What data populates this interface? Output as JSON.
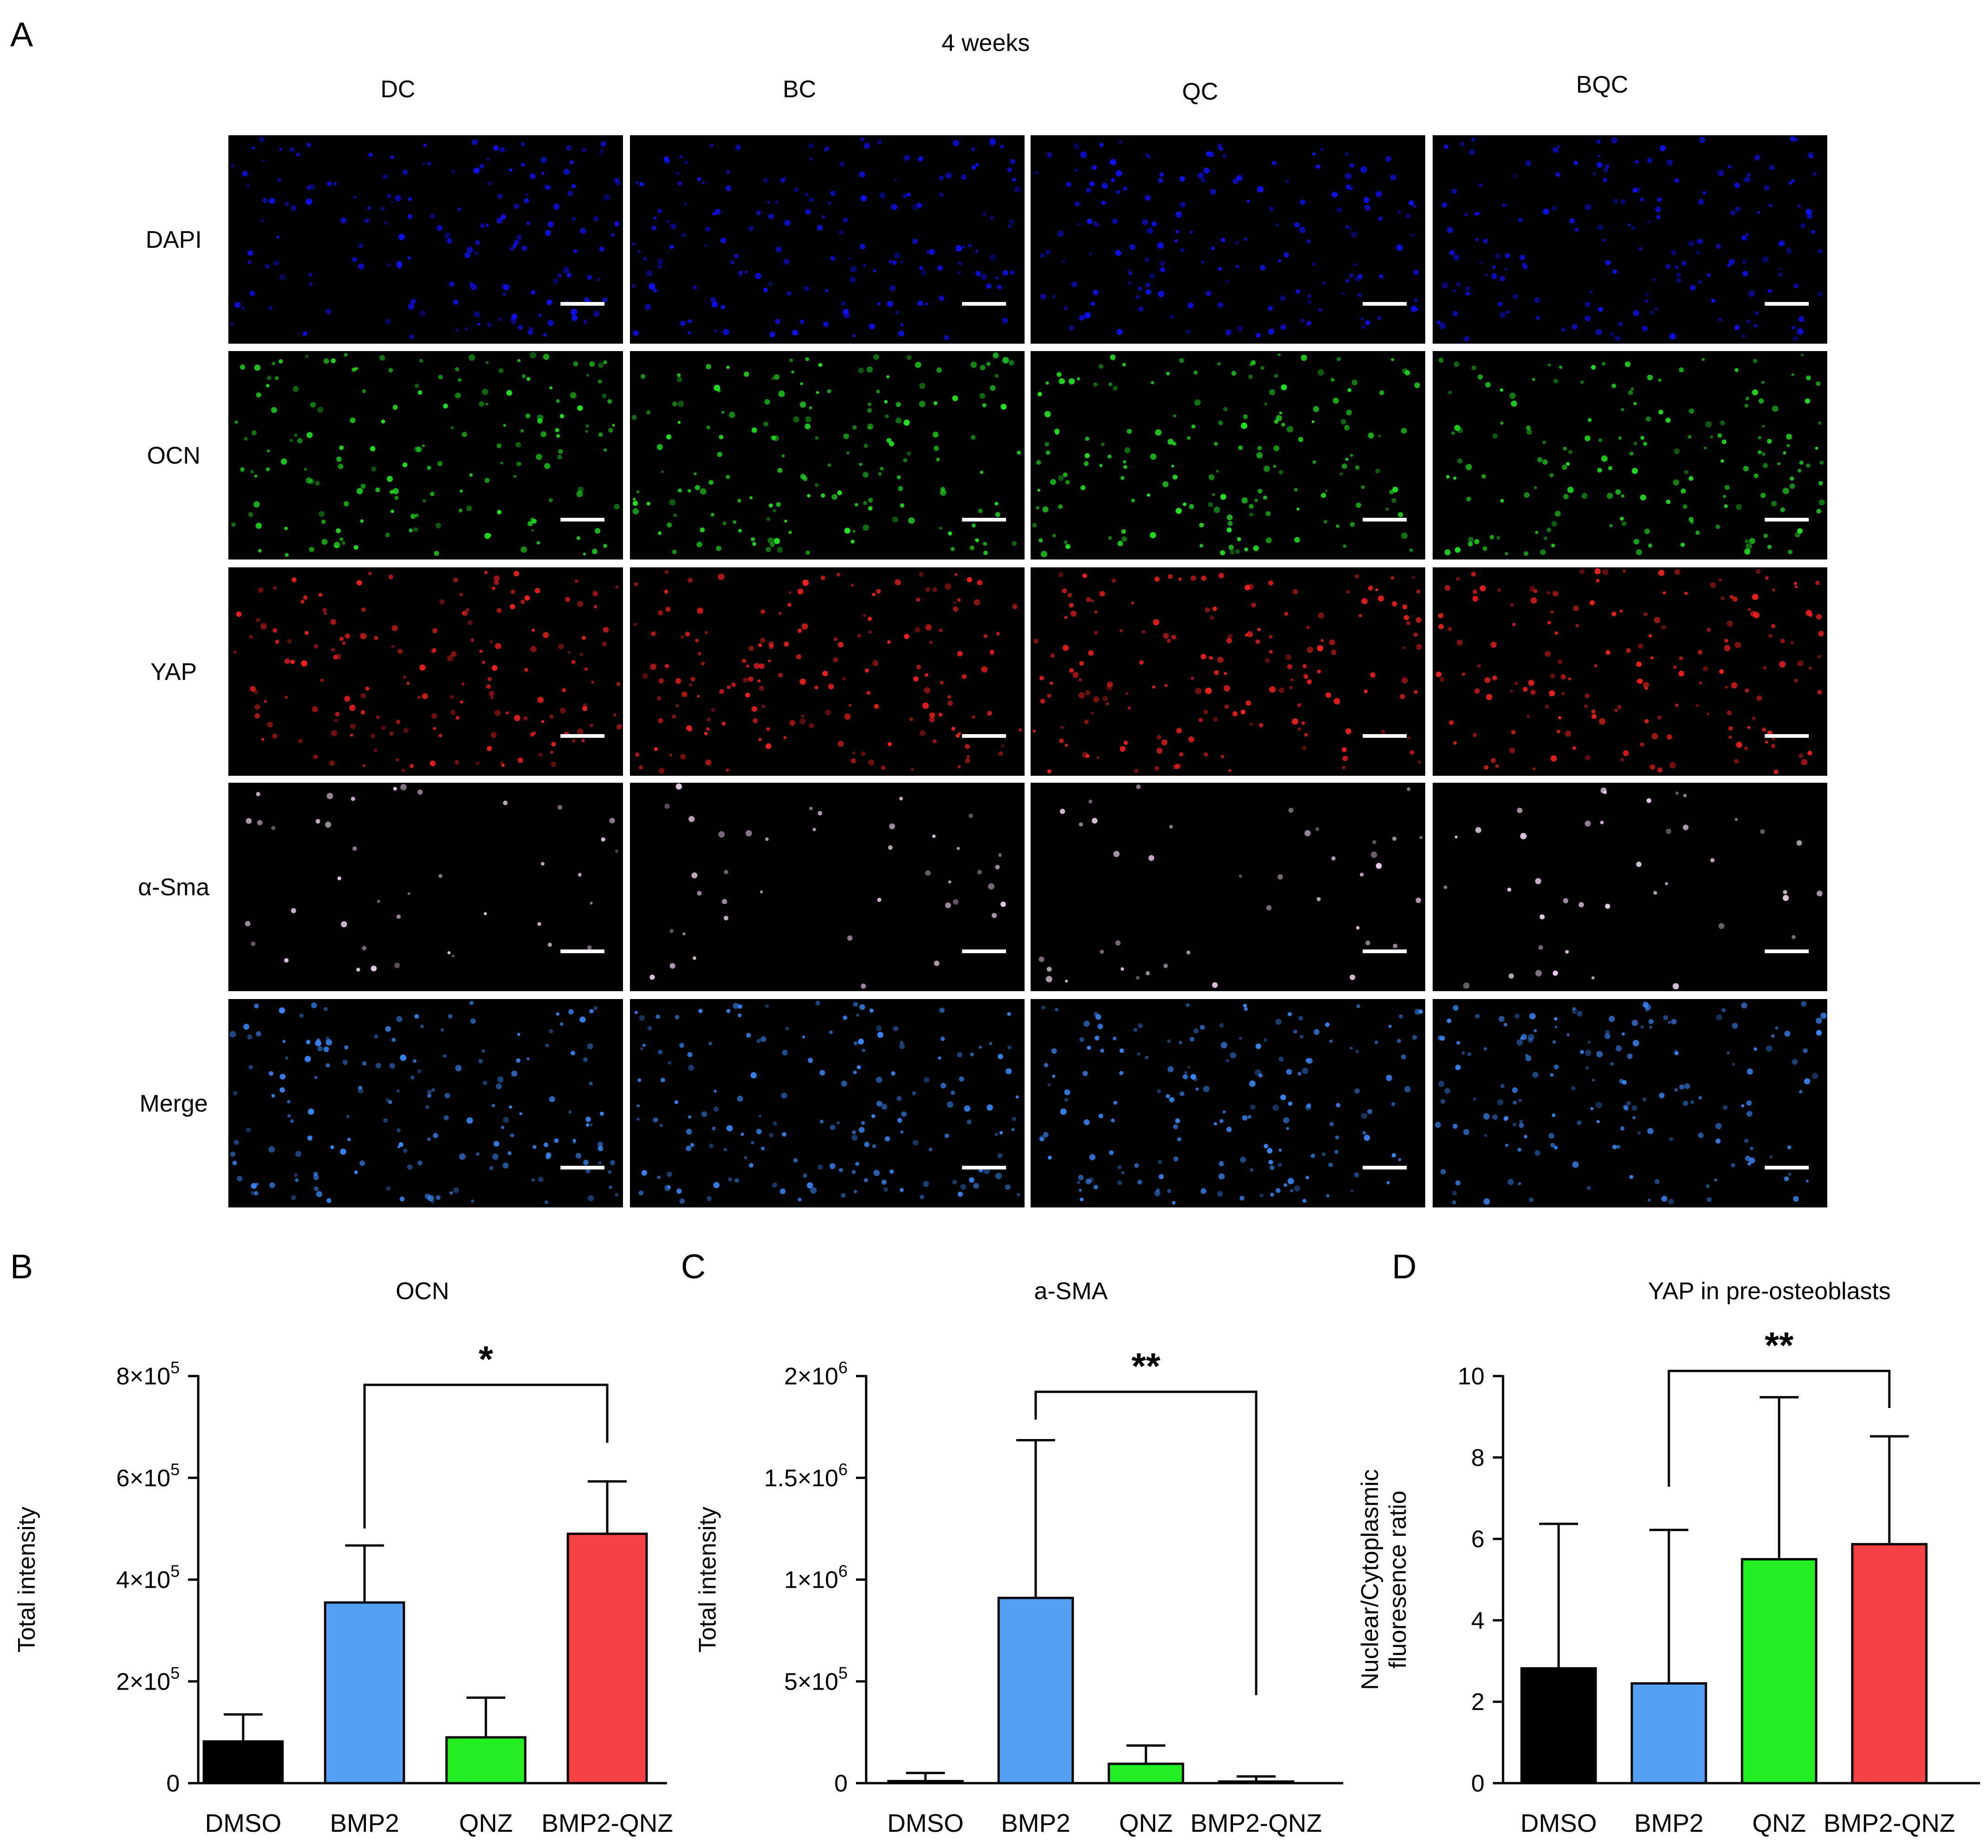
{
  "panel_a": {
    "label": "A",
    "time_label": "4 weeks",
    "columns": [
      "DC",
      "BC",
      "QC",
      "BQC"
    ],
    "rows": [
      "DAPI",
      "OCN",
      "YAP",
      "α-Sma",
      "Merge"
    ],
    "channel_colors": {
      "DAPI": "#1010ff",
      "OCN": "#22ee22",
      "YAP": "#ff2222",
      "α-Sma": "#f4d6f4",
      "Merge": "#3c8cff"
    }
  },
  "chart_data": [
    {
      "panel": "B",
      "type": "bar",
      "title": "OCN",
      "ylabel": "Total intensity",
      "xlabel": "",
      "ylim": [
        0,
        800000
      ],
      "yticks": [
        0,
        200000,
        400000,
        600000,
        800000
      ],
      "ytick_labels": [
        "0",
        "2×10",
        "4×10",
        "6×10",
        "8×10"
      ],
      "ytick_exp": [
        "",
        "5",
        "5",
        "5",
        "5"
      ],
      "categories": [
        "DMSO",
        "BMP2",
        "QNZ",
        "BMP2-QNZ"
      ],
      "values": [
        82000,
        355000,
        90000,
        490000
      ],
      "errors": [
        53000,
        112000,
        78000,
        103000
      ],
      "colors": [
        "#000000",
        "#55a0f5",
        "#22ee22",
        "#f54242"
      ],
      "significance": {
        "between": [
          1,
          3
        ],
        "label": "*"
      }
    },
    {
      "panel": "C",
      "type": "bar",
      "title": "a-SMA",
      "ylabel": "Total intensity",
      "xlabel": "",
      "ylim": [
        0,
        2000000
      ],
      "yticks": [
        0,
        500000,
        1000000,
        1500000,
        2000000
      ],
      "ytick_labels": [
        "0",
        "5×10",
        "1×10",
        "1.5×10",
        "2×10"
      ],
      "ytick_exp": [
        "",
        "5",
        "6",
        "6",
        "6"
      ],
      "categories": [
        "DMSO",
        "BMP2",
        "QNZ",
        "BMP2-QNZ"
      ],
      "values": [
        10000,
        910000,
        95000,
        8000
      ],
      "errors": [
        40000,
        775000,
        90000,
        25000
      ],
      "colors": [
        "#000000",
        "#55a0f5",
        "#22ee22",
        "#f54242"
      ],
      "significance": {
        "between": [
          1,
          3
        ],
        "label": "**"
      }
    },
    {
      "panel": "D",
      "type": "bar",
      "title": "YAP in pre-osteoblasts",
      "ylabel": "Nuclear/Cytoplasmic fluoresence ratio",
      "ylabel_lines": [
        "Nuclear/Cytoplasmic",
        "fluoresence ratio"
      ],
      "xlabel": "",
      "ylim": [
        0,
        10
      ],
      "yticks": [
        0,
        2,
        4,
        6,
        8,
        10
      ],
      "ytick_labels": [
        "0",
        "2",
        "4",
        "6",
        "8",
        "10"
      ],
      "ytick_exp": [
        "",
        "",
        "",
        "",
        "",
        ""
      ],
      "categories": [
        "DMSO",
        "BMP2",
        "QNZ",
        "BMP2-QNZ"
      ],
      "values": [
        2.82,
        2.45,
        5.5,
        5.87
      ],
      "errors": [
        3.55,
        3.77,
        3.98,
        2.65
      ],
      "colors": [
        "#000000",
        "#55a0f5",
        "#22ee22",
        "#f54242"
      ],
      "significance": {
        "between": [
          1,
          3
        ],
        "label": "**"
      }
    }
  ],
  "panel_labels": {
    "b": "B",
    "c": "C",
    "d": "D"
  }
}
